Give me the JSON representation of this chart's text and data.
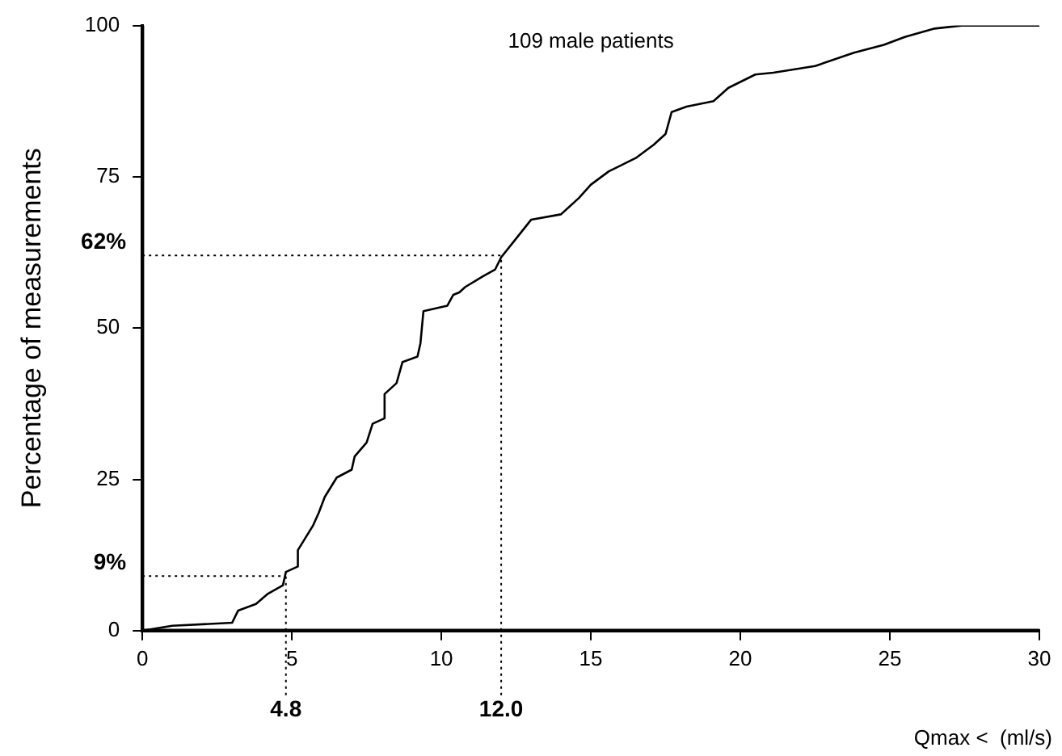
{
  "chart_data": {
    "type": "line",
    "title": "109 male patients",
    "xlabel": "Qmax <  (ml/s)",
    "ylabel": "Percentage of measurements",
    "x": [
      0,
      1.0,
      3.0,
      3.2,
      3.8,
      4.2,
      4.7,
      4.8,
      5.2,
      5.2,
      5.7,
      5.9,
      6.1,
      6.5,
      7.0,
      7.1,
      7.5,
      7.7,
      8.1,
      8.1,
      8.5,
      8.7,
      9.2,
      9.3,
      9.4,
      10.2,
      10.4,
      10.6,
      10.8,
      11.4,
      11.8,
      12.0,
      12.5,
      13.0,
      14.0,
      14.6,
      15.0,
      15.6,
      16.5,
      17.1,
      17.5,
      17.7,
      18.2,
      19.1,
      19.6,
      20.5,
      21.1,
      22.5,
      23.8,
      24.8,
      25.5,
      26.5,
      27.4,
      30
    ],
    "series": [
      {
        "color": "#000000",
        "values": [
          0,
          0.8,
          1.3,
          3.3,
          4.4,
          6.1,
          7.5,
          9.7,
          10.6,
          13.3,
          17.3,
          19.5,
          22.1,
          25.3,
          26.6,
          28.8,
          31.1,
          34.2,
          35.1,
          39.1,
          40.9,
          44.4,
          45.3,
          47.5,
          52.8,
          53.7,
          55.5,
          55.9,
          56.8,
          58.6,
          59.7,
          61.7,
          64.8,
          67.9,
          68.8,
          71.5,
          73.7,
          75.9,
          78.1,
          80.3,
          82.1,
          85.7,
          86.6,
          87.5,
          89.7,
          91.9,
          92.2,
          93.3,
          95.5,
          96.8,
          98.1,
          99.5,
          100,
          100
        ]
      }
    ],
    "xlim": [
      0,
      30
    ],
    "xticks": [
      0,
      5,
      10,
      15,
      20,
      25,
      30
    ],
    "ylim": [
      0,
      100
    ],
    "yticks": [
      0,
      25,
      50,
      75,
      100
    ],
    "ref_lines": [
      {
        "axis": "y",
        "value": 62,
        "label": "62%",
        "line_style": "dotted"
      },
      {
        "axis": "y",
        "value": 9,
        "label": "9%",
        "line_style": "dotted"
      },
      {
        "axis": "x",
        "value": 4.8,
        "label": "4.8",
        "line_style": "dotted"
      },
      {
        "axis": "x",
        "value": 12.0,
        "label": "12.0",
        "line_style": "dotted"
      }
    ],
    "grid": false,
    "legend": false,
    "marker": "none",
    "line_style": "solid"
  }
}
